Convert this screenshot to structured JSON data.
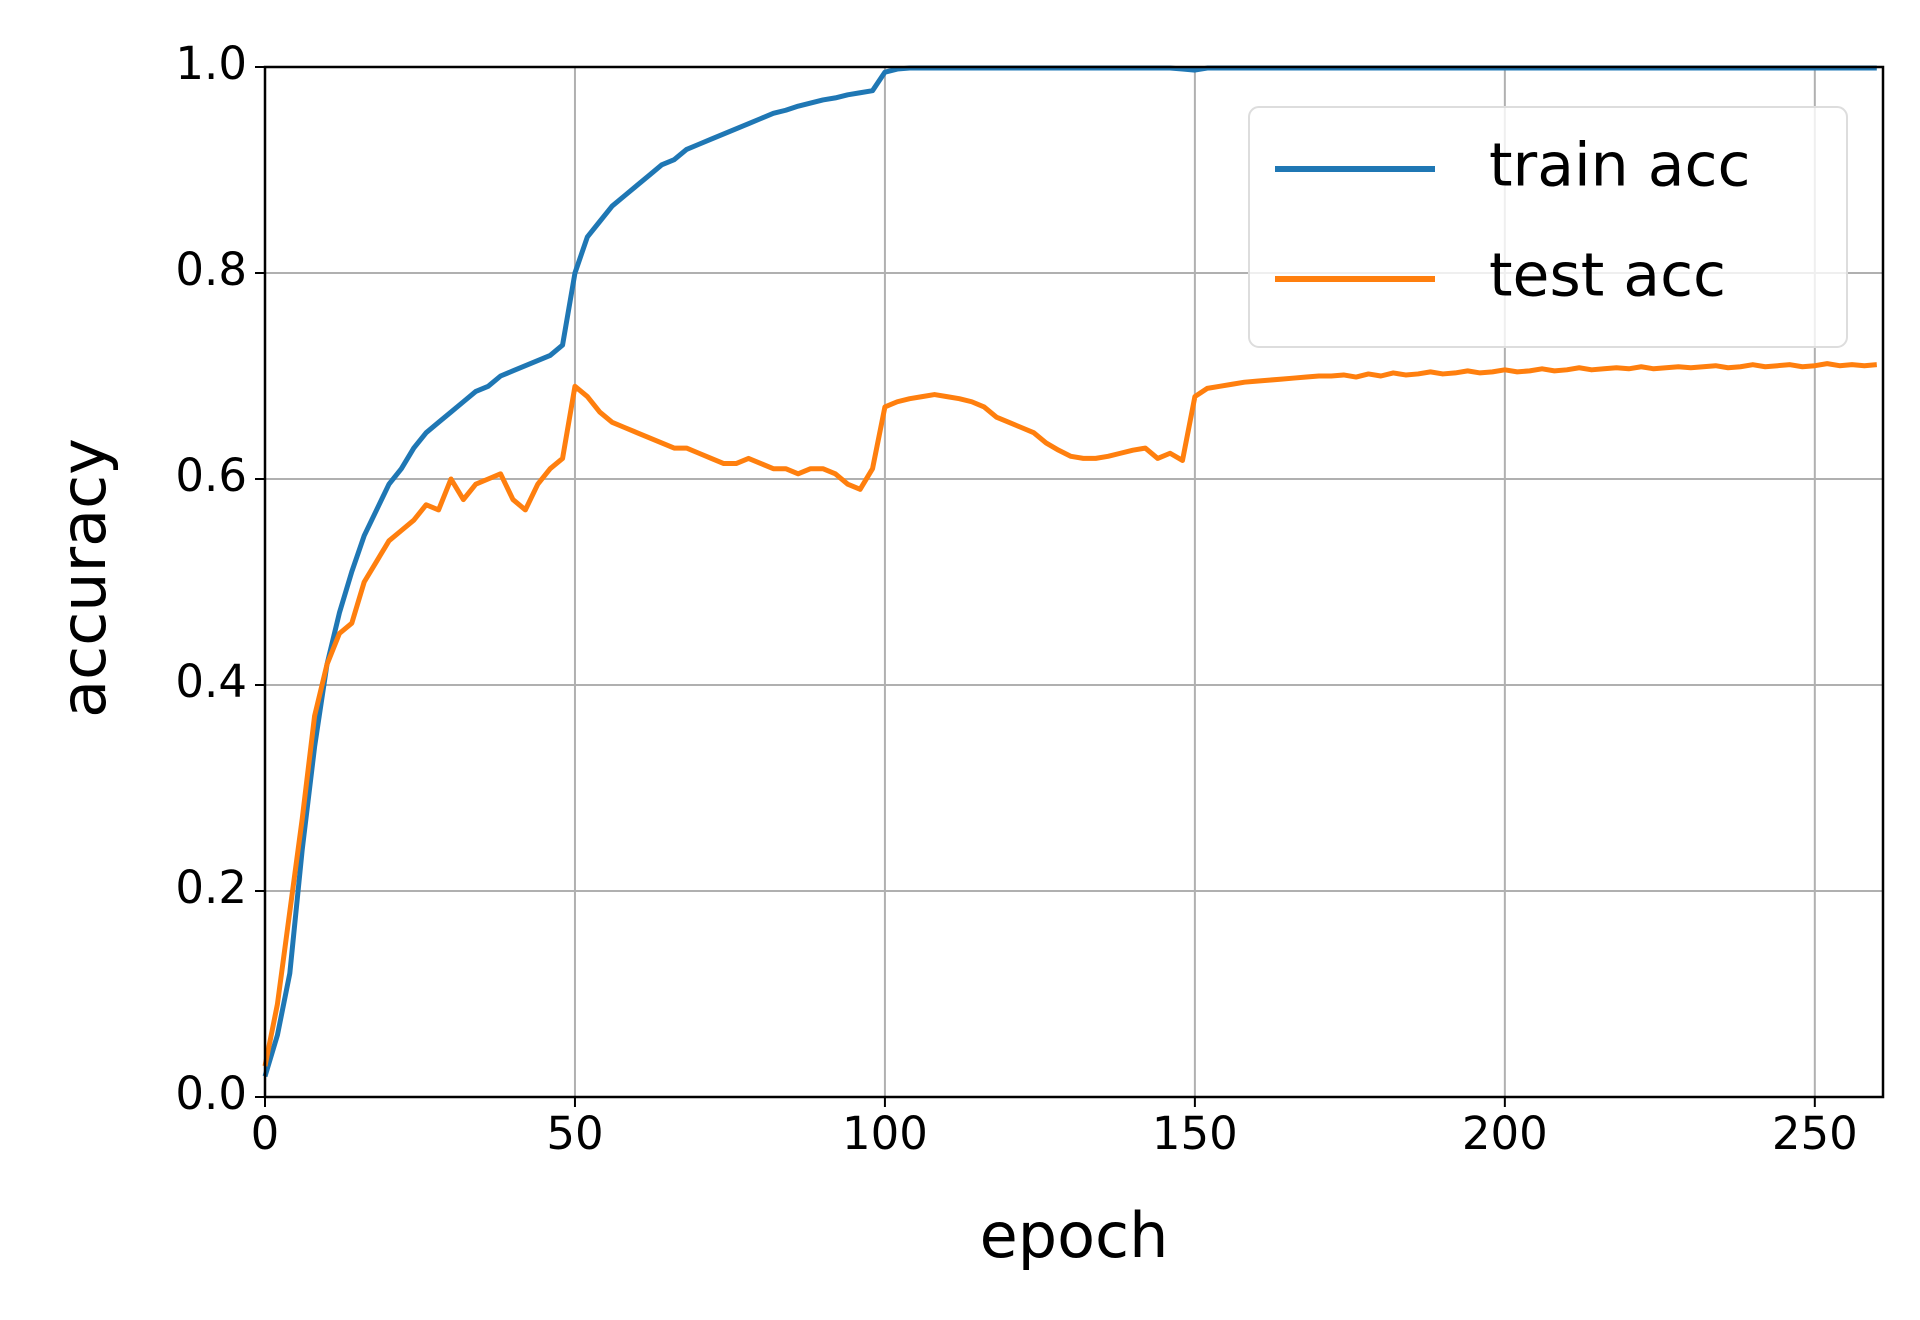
{
  "chart_data": {
    "type": "line",
    "x_label": "epoch",
    "y_label": "accuracy",
    "x": [
      0,
      2,
      4,
      6,
      8,
      10,
      12,
      14,
      16,
      18,
      20,
      22,
      24,
      26,
      28,
      30,
      32,
      34,
      36,
      38,
      40,
      42,
      44,
      46,
      48,
      50,
      52,
      54,
      56,
      58,
      60,
      62,
      64,
      66,
      68,
      70,
      72,
      74,
      76,
      78,
      80,
      82,
      84,
      86,
      88,
      90,
      92,
      94,
      96,
      98,
      100,
      102,
      104,
      106,
      108,
      110,
      112,
      114,
      116,
      118,
      120,
      122,
      124,
      126,
      128,
      130,
      132,
      134,
      136,
      138,
      140,
      142,
      144,
      146,
      148,
      150,
      152,
      154,
      156,
      158,
      160,
      162,
      164,
      166,
      168,
      170,
      172,
      174,
      176,
      178,
      180,
      182,
      184,
      186,
      188,
      190,
      192,
      194,
      196,
      198,
      200,
      202,
      204,
      206,
      208,
      210,
      212,
      214,
      216,
      218,
      220,
      222,
      224,
      226,
      228,
      230,
      232,
      234,
      236,
      238,
      240,
      242,
      244,
      246,
      248,
      250,
      252,
      254,
      256,
      258,
      260
    ],
    "series": [
      {
        "name": "train acc",
        "color": "#1f77b4",
        "values": [
          0.02,
          0.06,
          0.12,
          0.24,
          0.34,
          0.42,
          0.47,
          0.51,
          0.545,
          0.57,
          0.595,
          0.61,
          0.63,
          0.645,
          0.655,
          0.665,
          0.675,
          0.685,
          0.69,
          0.7,
          0.705,
          0.71,
          0.715,
          0.72,
          0.73,
          0.8,
          0.835,
          0.85,
          0.865,
          0.875,
          0.885,
          0.895,
          0.905,
          0.91,
          0.92,
          0.925,
          0.93,
          0.935,
          0.94,
          0.945,
          0.95,
          0.955,
          0.958,
          0.962,
          0.965,
          0.968,
          0.97,
          0.973,
          0.975,
          0.977,
          0.995,
          0.998,
          0.999,
          0.999,
          0.999,
          0.999,
          0.999,
          0.999,
          0.999,
          0.999,
          0.999,
          0.999,
          0.999,
          0.999,
          0.999,
          0.999,
          0.999,
          0.999,
          0.999,
          0.999,
          0.999,
          0.999,
          0.999,
          0.999,
          0.998,
          0.997,
          0.999,
          0.999,
          0.999,
          0.999,
          0.999,
          0.999,
          0.999,
          0.999,
          0.999,
          0.999,
          0.999,
          0.999,
          0.999,
          0.999,
          0.999,
          0.999,
          0.999,
          0.999,
          0.999,
          0.999,
          0.999,
          0.999,
          0.999,
          0.999,
          0.999,
          0.999,
          0.999,
          0.999,
          0.999,
          0.999,
          0.999,
          0.999,
          0.999,
          0.999,
          0.999,
          0.999,
          0.999,
          0.999,
          0.999,
          0.999,
          0.999,
          0.999,
          0.999,
          0.999,
          0.999,
          0.999,
          0.999,
          0.999,
          0.999,
          0.999,
          0.999,
          0.999,
          0.999,
          0.999,
          0.999
        ]
      },
      {
        "name": "test acc",
        "color": "#ff7f0e",
        "values": [
          0.03,
          0.09,
          0.18,
          0.27,
          0.37,
          0.42,
          0.45,
          0.46,
          0.5,
          0.52,
          0.54,
          0.55,
          0.56,
          0.575,
          0.57,
          0.6,
          0.58,
          0.595,
          0.6,
          0.605,
          0.58,
          0.57,
          0.595,
          0.61,
          0.62,
          0.69,
          0.68,
          0.665,
          0.655,
          0.65,
          0.645,
          0.64,
          0.635,
          0.63,
          0.63,
          0.625,
          0.62,
          0.615,
          0.615,
          0.62,
          0.615,
          0.61,
          0.61,
          0.605,
          0.61,
          0.61,
          0.605,
          0.595,
          0.59,
          0.61,
          0.67,
          0.675,
          0.678,
          0.68,
          0.682,
          0.68,
          0.678,
          0.675,
          0.67,
          0.66,
          0.655,
          0.65,
          0.645,
          0.635,
          0.628,
          0.622,
          0.62,
          0.62,
          0.622,
          0.625,
          0.628,
          0.63,
          0.62,
          0.625,
          0.618,
          0.68,
          0.688,
          0.69,
          0.692,
          0.694,
          0.695,
          0.696,
          0.697,
          0.698,
          0.699,
          0.7,
          0.7,
          0.701,
          0.699,
          0.702,
          0.7,
          0.703,
          0.701,
          0.702,
          0.704,
          0.702,
          0.703,
          0.705,
          0.703,
          0.704,
          0.706,
          0.704,
          0.705,
          0.707,
          0.705,
          0.706,
          0.708,
          0.706,
          0.707,
          0.708,
          0.707,
          0.709,
          0.707,
          0.708,
          0.709,
          0.708,
          0.709,
          0.71,
          0.708,
          0.709,
          0.711,
          0.709,
          0.71,
          0.711,
          0.709,
          0.71,
          0.712,
          0.71,
          0.711,
          0.71,
          0.711
        ]
      }
    ],
    "xlim": [
      0,
      261
    ],
    "ylim": [
      0,
      1
    ],
    "xticks": [
      0,
      50,
      100,
      150,
      200,
      250
    ],
    "yticks": [
      {
        "value": 0,
        "label": "0.0"
      },
      0.2,
      0.4,
      0.6,
      0.8,
      {
        "value": 1,
        "label": "1.0"
      }
    ],
    "grid": true,
    "legend": "upper right"
  }
}
